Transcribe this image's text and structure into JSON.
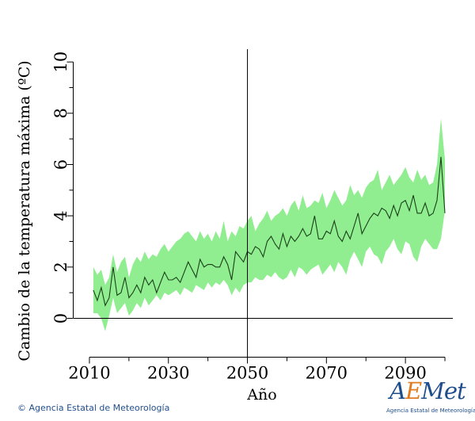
{
  "chart_data": {
    "type": "area",
    "title": "",
    "xlabel": "Año",
    "ylabel": "Cambio de la temperatura máxima (ºC)",
    "xlim": [
      2006,
      2102
    ],
    "ylim": [
      -1.5,
      10.5
    ],
    "xticks": [
      2010,
      2030,
      2050,
      2070,
      2090
    ],
    "yticks": [
      0,
      2,
      4,
      6,
      8,
      10
    ],
    "reference_year": 2050,
    "grid": false,
    "series": [
      {
        "kind": "band",
        "color": "#90ee90",
        "x": [
          2011,
          2012,
          2013,
          2014,
          2015,
          2016,
          2017,
          2018,
          2019,
          2020,
          2021,
          2022,
          2023,
          2024,
          2025,
          2026,
          2027,
          2028,
          2029,
          2030,
          2031,
          2032,
          2033,
          2034,
          2035,
          2036,
          2037,
          2038,
          2039,
          2040,
          2041,
          2042,
          2043,
          2044,
          2045,
          2046,
          2047,
          2048,
          2049,
          2050,
          2051,
          2052,
          2053,
          2054,
          2055,
          2056,
          2057,
          2058,
          2059,
          2060,
          2061,
          2062,
          2063,
          2064,
          2065,
          2066,
          2067,
          2068,
          2069,
          2070,
          2071,
          2072,
          2073,
          2074,
          2075,
          2076,
          2077,
          2078,
          2079,
          2080,
          2081,
          2082,
          2083,
          2084,
          2085,
          2086,
          2087,
          2088,
          2089,
          2090,
          2091,
          2092,
          2093,
          2094,
          2095,
          2096,
          2097,
          2098,
          2099,
          2100
        ],
        "upper": [
          2.0,
          1.7,
          1.9,
          1.3,
          1.6,
          2.5,
          1.8,
          2.2,
          2.4,
          1.6,
          2.1,
          2.4,
          2.2,
          2.6,
          2.3,
          2.5,
          2.4,
          2.7,
          2.9,
          2.6,
          2.8,
          3.0,
          3.1,
          3.3,
          3.4,
          3.2,
          3.0,
          3.4,
          3.1,
          3.3,
          3.0,
          3.4,
          3.1,
          3.8,
          3.0,
          3.4,
          3.2,
          3.6,
          3.5,
          3.8,
          4.0,
          3.4,
          3.7,
          3.9,
          4.2,
          3.8,
          4.0,
          4.1,
          4.3,
          4.0,
          4.4,
          4.6,
          4.2,
          4.8,
          4.3,
          4.4,
          4.6,
          4.5,
          4.9,
          4.3,
          4.6,
          5.0,
          4.7,
          4.4,
          4.6,
          5.2,
          4.8,
          5.0,
          4.7,
          5.1,
          5.3,
          5.4,
          5.8,
          5.0,
          5.3,
          5.6,
          5.2,
          5.4,
          5.6,
          5.9,
          5.5,
          5.3,
          5.8,
          5.4,
          5.6,
          5.2,
          5.3,
          6.0,
          7.8,
          6.2
        ],
        "lower": [
          0.2,
          0.2,
          0.0,
          -0.5,
          0.1,
          0.8,
          0.2,
          0.4,
          0.6,
          0.1,
          0.3,
          0.6,
          0.4,
          0.8,
          0.5,
          0.7,
          0.9,
          0.7,
          1.0,
          0.9,
          1.0,
          1.1,
          0.9,
          1.2,
          1.1,
          1.0,
          1.3,
          1.2,
          1.1,
          1.4,
          1.2,
          1.4,
          1.3,
          1.5,
          1.3,
          0.9,
          1.2,
          1.0,
          1.3,
          1.4,
          1.4,
          1.6,
          1.5,
          1.5,
          1.7,
          1.6,
          1.8,
          1.6,
          1.5,
          1.6,
          1.9,
          1.6,
          2.0,
          1.9,
          1.7,
          1.9,
          2.0,
          2.1,
          1.7,
          1.9,
          2.1,
          1.8,
          2.2,
          2.0,
          1.7,
          2.3,
          2.6,
          2.3,
          2.0,
          2.6,
          2.8,
          2.5,
          2.4,
          2.1,
          2.6,
          2.8,
          3.1,
          2.7,
          2.5,
          3.0,
          2.9,
          2.4,
          2.2,
          2.8,
          3.1,
          2.9,
          2.7,
          2.7,
          3.1,
          4.2
        ]
      },
      {
        "kind": "line",
        "color": "#1a401a",
        "x": [
          2011,
          2012,
          2013,
          2014,
          2015,
          2016,
          2017,
          2018,
          2019,
          2020,
          2021,
          2022,
          2023,
          2024,
          2025,
          2026,
          2027,
          2028,
          2029,
          2030,
          2031,
          2032,
          2033,
          2034,
          2035,
          2036,
          2037,
          2038,
          2039,
          2040,
          2041,
          2042,
          2043,
          2044,
          2045,
          2046,
          2047,
          2048,
          2049,
          2050,
          2051,
          2052,
          2053,
          2054,
          2055,
          2056,
          2057,
          2058,
          2059,
          2060,
          2061,
          2062,
          2063,
          2064,
          2065,
          2066,
          2067,
          2068,
          2069,
          2070,
          2071,
          2072,
          2073,
          2074,
          2075,
          2076,
          2077,
          2078,
          2079,
          2080,
          2081,
          2082,
          2083,
          2084,
          2085,
          2086,
          2087,
          2088,
          2089,
          2090,
          2091,
          2092,
          2093,
          2094,
          2095,
          2096,
          2097,
          2098,
          2099,
          2100
        ],
        "values": [
          1.1,
          0.7,
          1.2,
          0.5,
          0.8,
          2.0,
          0.9,
          1.0,
          1.6,
          0.8,
          1.0,
          1.3,
          1.0,
          1.6,
          1.3,
          1.5,
          1.0,
          1.4,
          1.8,
          1.5,
          1.5,
          1.6,
          1.4,
          1.8,
          2.2,
          1.9,
          1.6,
          2.3,
          2.0,
          2.1,
          2.1,
          2.0,
          2.0,
          2.4,
          2.1,
          1.5,
          2.6,
          2.4,
          2.2,
          2.6,
          2.5,
          2.8,
          2.7,
          2.4,
          3.0,
          3.2,
          2.9,
          2.7,
          3.3,
          2.8,
          3.2,
          3.0,
          3.2,
          3.5,
          3.2,
          3.3,
          4.0,
          3.1,
          3.1,
          3.4,
          3.3,
          3.8,
          3.2,
          3.0,
          3.4,
          3.1,
          3.6,
          4.1,
          3.3,
          3.6,
          3.9,
          4.1,
          4.0,
          4.3,
          4.2,
          3.9,
          4.4,
          4.0,
          4.5,
          4.6,
          4.2,
          4.8,
          4.1,
          4.1,
          4.5,
          4.0,
          4.1,
          4.6,
          6.3,
          4.1
        ]
      }
    ]
  },
  "footer": {
    "copyright_symbol": "©",
    "copyright_text": "Agencia Estatal de Meteorología"
  },
  "logo": {
    "word": "AEMet",
    "caption": "Agencia Estatal de Meteorología"
  }
}
